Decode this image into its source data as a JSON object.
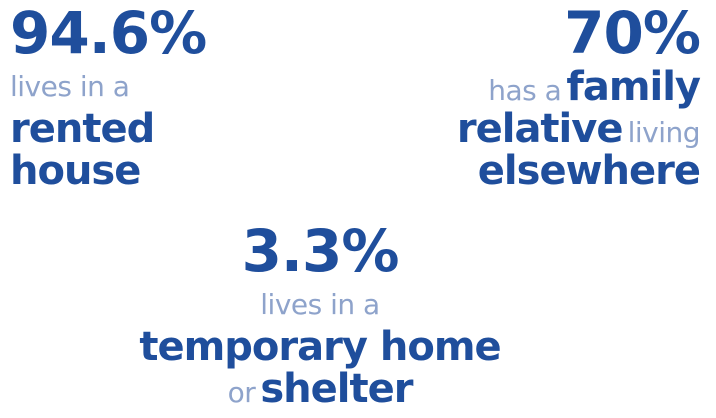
{
  "stats": [
    {
      "figure": "94.6%",
      "align": "left",
      "lines": [
        [
          {
            "text": "lives in a",
            "bold": false
          }
        ],
        [
          {
            "text": "rented",
            "bold": true
          }
        ],
        [
          {
            "text": "house",
            "bold": true
          }
        ]
      ]
    },
    {
      "figure": "70%",
      "align": "right",
      "lines": [
        [
          {
            "text": "has a",
            "bold": false
          },
          {
            "text": "family",
            "bold": true
          }
        ],
        [
          {
            "text": "relative",
            "bold": true
          },
          {
            "text": "living",
            "bold": false
          }
        ],
        [
          {
            "text": "elsewhere",
            "bold": true
          }
        ]
      ]
    },
    {
      "figure": "3.3%",
      "align": "center",
      "lines": [
        [
          {
            "text": "lives in a",
            "bold": false
          }
        ],
        [
          {
            "text": "temporary home",
            "bold": true
          }
        ],
        [
          {
            "text": "or",
            "bold": false
          },
          {
            "text": "shelter",
            "bold": true
          }
        ]
      ]
    }
  ]
}
